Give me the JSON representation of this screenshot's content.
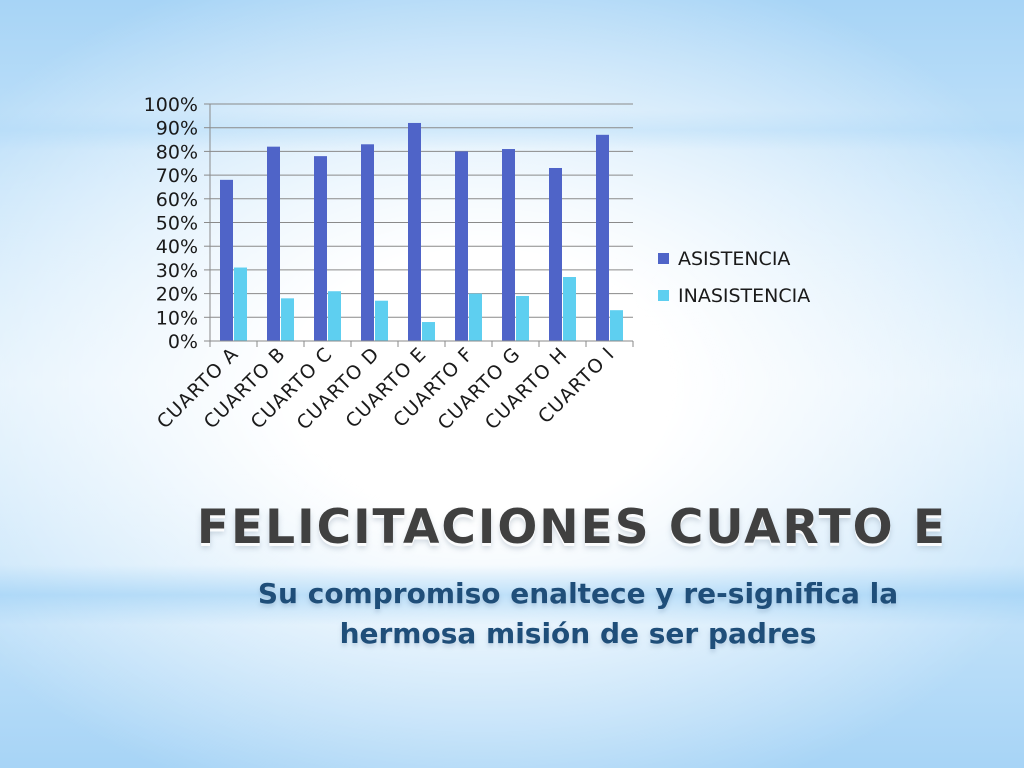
{
  "chart_data": {
    "type": "bar",
    "categories": [
      "CUARTO A",
      "CUARTO B",
      "CUARTO C",
      "CUARTO D",
      "CUARTO E",
      "CUARTO F",
      "CUARTO G",
      "CUARTO H",
      "CUARTO I"
    ],
    "series": [
      {
        "name": "ASISTENCIA",
        "color": "#4f64c8",
        "values": [
          68,
          82,
          78,
          83,
          92,
          80,
          81,
          73,
          87
        ]
      },
      {
        "name": "INASISTENCIA",
        "color": "#5ecff0",
        "values": [
          31,
          18,
          21,
          17,
          8,
          20,
          19,
          27,
          13
        ]
      }
    ],
    "y_ticks": [
      "0%",
      "10%",
      "20%",
      "30%",
      "40%",
      "50%",
      "60%",
      "70%",
      "80%",
      "90%",
      "100%"
    ],
    "ylim": [
      0,
      100
    ],
    "grid": true,
    "legend_position": "right",
    "title": "",
    "xlabel": "",
    "ylabel": ""
  },
  "slide": {
    "title": "FELICITACIONES CUARTO E",
    "subtitle_line1": "Su compromiso enaltece  y re-significa la",
    "subtitle_line2": "hermosa misión de ser padres"
  }
}
